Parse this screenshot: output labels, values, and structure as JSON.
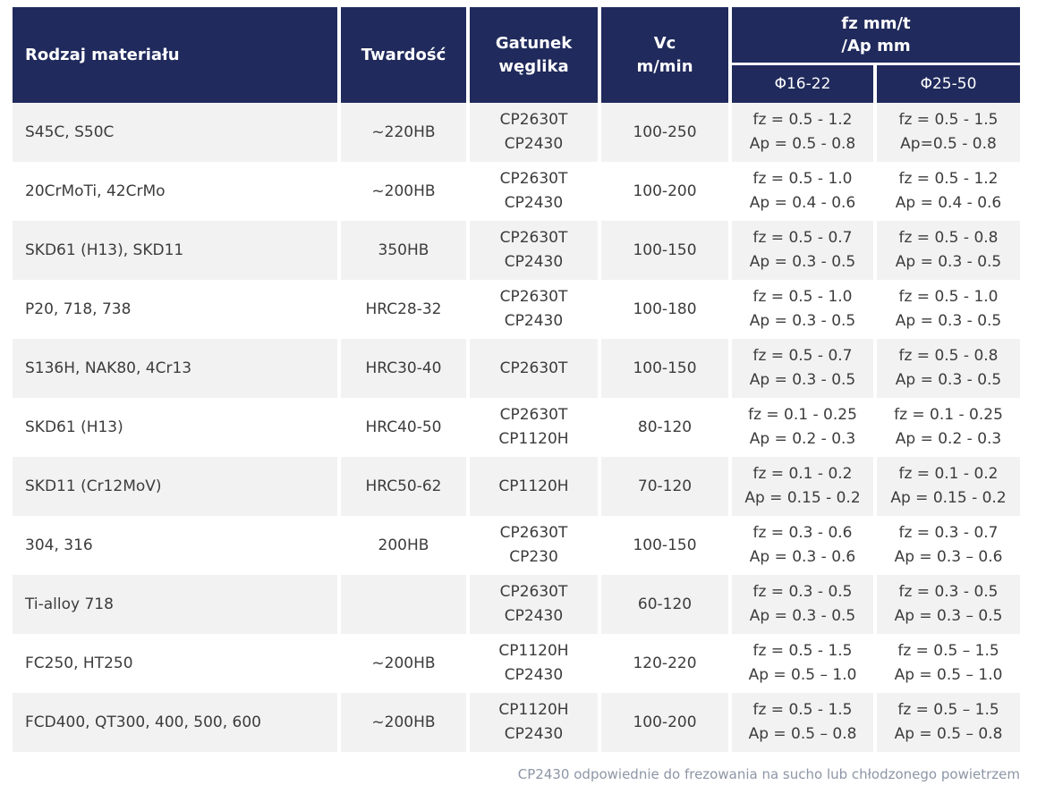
{
  "table": {
    "header": {
      "material": "Rodzaj materiału",
      "hardness": "Twardość",
      "grade": "Gatunek\nwęglika",
      "vc": "Vc\nm/min",
      "fz_group": "fz mm/t\n/Ap mm",
      "dia_small": "Φ16-22",
      "dia_large": "Φ25-50"
    },
    "rows": [
      {
        "material": "S45C, S50C",
        "hardness": "~220HB",
        "grade": "CP2630T\nCP2430",
        "vc": "100-250",
        "d16_fz": "fz = 0.5 - 1.2",
        "d16_ap": "Ap = 0.5 - 0.8",
        "d25_fz": "fz = 0.5 - 1.5",
        "d25_ap": "Ap=0.5 - 0.8"
      },
      {
        "material": "20CrMoTi, 42CrMo",
        "hardness": "~200HB",
        "grade": "CP2630T\nCP2430",
        "vc": "100-200",
        "d16_fz": "fz = 0.5 - 1.0",
        "d16_ap": "Ap = 0.4 - 0.6",
        "d25_fz": "fz = 0.5 - 1.2",
        "d25_ap": "Ap = 0.4 - 0.6"
      },
      {
        "material": "SKD61 (H13), SKD11",
        "hardness": "350HB",
        "grade": "CP2630T\nCP2430",
        "vc": "100-150",
        "d16_fz": "fz = 0.5 - 0.7",
        "d16_ap": "Ap = 0.3 - 0.5",
        "d25_fz": "fz = 0.5 - 0.8",
        "d25_ap": "Ap = 0.3 - 0.5"
      },
      {
        "material": "P20, 718, 738",
        "hardness": "HRC28-32",
        "grade": "CP2630T\nCP2430",
        "vc": "100-180",
        "d16_fz": "fz = 0.5 - 1.0",
        "d16_ap": "Ap = 0.3 - 0.5",
        "d25_fz": "fz = 0.5 - 1.0",
        "d25_ap": "Ap = 0.3 - 0.5"
      },
      {
        "material": "S136H, NAK80, 4Cr13",
        "hardness": "HRC30-40",
        "grade": "CP2630T",
        "vc": "100-150",
        "d16_fz": "fz = 0.5 - 0.7",
        "d16_ap": "Ap = 0.3 - 0.5",
        "d25_fz": "fz = 0.5 - 0.8",
        "d25_ap": "Ap = 0.3 - 0.5"
      },
      {
        "material": "SKD61 (H13)",
        "hardness": "HRC40-50",
        "grade": "CP2630T\nCP1120H",
        "vc": "80-120",
        "d16_fz": "fz = 0.1 - 0.25",
        "d16_ap": "Ap = 0.2 - 0.3",
        "d25_fz": "fz = 0.1 - 0.25",
        "d25_ap": "Ap = 0.2 - 0.3"
      },
      {
        "material": "SKD11 (Cr12MoV)",
        "hardness": "HRC50-62",
        "grade": "CP1120H",
        "vc": "70-120",
        "d16_fz": "fz = 0.1 - 0.2",
        "d16_ap": "Ap = 0.15 - 0.2",
        "d25_fz": "fz = 0.1 - 0.2",
        "d25_ap": "Ap = 0.15 - 0.2"
      },
      {
        "material": "304, 316",
        "hardness": "200HB",
        "grade": "CP2630T\nCP230",
        "vc": "100-150",
        "d16_fz": "fz = 0.3 - 0.6",
        "d16_ap": "Ap = 0.3 - 0.6",
        "d25_fz": "fz = 0.3 - 0.7",
        "d25_ap": "Ap = 0.3 – 0.6"
      },
      {
        "material": "Ti-alloy 718",
        "hardness": "",
        "grade": "CP2630T\nCP2430",
        "vc": "60-120",
        "d16_fz": "fz = 0.3 - 0.5",
        "d16_ap": "Ap = 0.3 - 0.5",
        "d25_fz": "fz = 0.3 - 0.5",
        "d25_ap": "Ap = 0.3 – 0.5"
      },
      {
        "material": "FC250, HT250",
        "hardness": "~200HB",
        "grade": "CP1120H\nCP2430",
        "vc": "120-220",
        "d16_fz": "fz = 0.5 - 1.5",
        "d16_ap": "Ap = 0.5 – 1.0",
        "d25_fz": "fz = 0.5 – 1.5",
        "d25_ap": "Ap = 0.5 – 1.0"
      },
      {
        "material": "FCD400, QT300, 400, 500, 600",
        "hardness": "~200HB",
        "grade": "CP1120H\nCP2430",
        "vc": "100-200",
        "d16_fz": "fz = 0.5 - 1.5",
        "d16_ap": "Ap = 0.5 – 0.8",
        "d25_fz": "fz = 0.5 – 1.5",
        "d25_ap": "Ap = 0.5 – 0.8"
      }
    ],
    "footnote": "CP2430 odpowiednie do frezowania na sucho lub chłodzonego powietrzem"
  },
  "colors": {
    "header_bg": "#202a5c",
    "header_text": "#ffffff",
    "row_alt_bg": "#f2f2f2",
    "body_text": "#3c3c3c",
    "footnote_text": "#8d96a6"
  }
}
